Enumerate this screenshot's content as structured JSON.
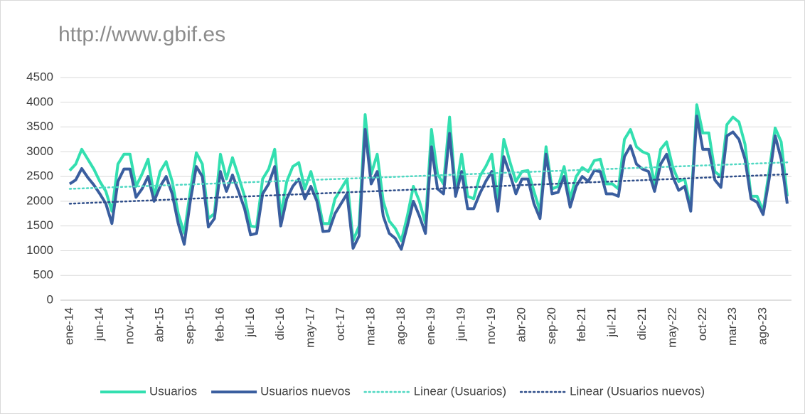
{
  "chart_data": {
    "type": "line",
    "title": "http://www.gbif.es",
    "categories": [
      "ene-14",
      null,
      null,
      null,
      null,
      "jun-14",
      null,
      null,
      null,
      null,
      "nov-14",
      null,
      null,
      null,
      null,
      "abr-15",
      null,
      null,
      null,
      null,
      "sep-15",
      null,
      null,
      null,
      null,
      "feb-16",
      null,
      null,
      null,
      null,
      "jul-16",
      null,
      null,
      null,
      null,
      "dic-16",
      null,
      null,
      null,
      null,
      "may-17",
      null,
      null,
      null,
      null,
      "oct-17",
      null,
      null,
      null,
      null,
      "mar-18",
      null,
      null,
      null,
      null,
      "ago-18",
      null,
      null,
      null,
      null,
      "ene-19",
      null,
      null,
      null,
      null,
      "jun-19",
      null,
      null,
      null,
      null,
      "nov-19",
      null,
      null,
      null,
      null,
      "abr-20",
      null,
      null,
      null,
      null,
      "sep-20",
      null,
      null,
      null,
      null,
      "feb-21",
      null,
      null,
      null,
      null,
      "jul-21",
      null,
      null,
      null,
      null,
      "dic-21",
      null,
      null,
      null,
      null,
      "may-22",
      null,
      null,
      null,
      null,
      "oct-22",
      null,
      null,
      null,
      null,
      "mar-23",
      null,
      null,
      null,
      null,
      "ago-23",
      null,
      null,
      null,
      null
    ],
    "series": [
      {
        "name": "Usuarios",
        "color": "#33dfb0",
        "line_style": "solid",
        "values": [
          2620,
          2750,
          3050,
          2850,
          2650,
          2400,
          2200,
          1800,
          2750,
          2950,
          2950,
          2300,
          2550,
          2850,
          2100,
          2600,
          2800,
          2400,
          1750,
          1350,
          2200,
          2980,
          2750,
          1650,
          1750,
          2950,
          2450,
          2880,
          2500,
          2100,
          1500,
          1480,
          2450,
          2650,
          3050,
          1700,
          2400,
          2700,
          2780,
          2250,
          2600,
          2150,
          1550,
          1550,
          2050,
          2250,
          2450,
          1200,
          1500,
          3750,
          2550,
          2950,
          2000,
          1600,
          1450,
          1200,
          1700,
          2300,
          2000,
          1550,
          3450,
          2550,
          2350,
          3700,
          2200,
          2950,
          2100,
          2050,
          2500,
          2700,
          2950,
          2000,
          3250,
          2800,
          2400,
          2600,
          2620,
          2200,
          1800,
          3100,
          2250,
          2300,
          2700,
          2050,
          2500,
          2680,
          2600,
          2820,
          2850,
          2350,
          2350,
          2250,
          3250,
          3450,
          3100,
          3000,
          2950,
          2350,
          3050,
          3200,
          2700,
          2400,
          2450,
          1850,
          3950,
          3380,
          3380,
          2600,
          2500,
          3550,
          3700,
          3600,
          3150,
          2100,
          2100,
          1800,
          2600,
          3480,
          3200,
          2100
        ]
      },
      {
        "name": "Usuarios nuevos",
        "color": "#3a5e9f",
        "line_style": "solid",
        "values": [
          2350,
          2430,
          2660,
          2480,
          2330,
          2150,
          1950,
          1550,
          2400,
          2650,
          2650,
          2080,
          2250,
          2500,
          2000,
          2300,
          2500,
          2150,
          1550,
          1130,
          2000,
          2700,
          2500,
          1480,
          1650,
          2600,
          2200,
          2530,
          2200,
          1850,
          1320,
          1350,
          2150,
          2350,
          2700,
          1500,
          2050,
          2300,
          2450,
          2050,
          2300,
          2000,
          1390,
          1400,
          1750,
          1950,
          2150,
          1050,
          1300,
          3450,
          2350,
          2600,
          1700,
          1350,
          1250,
          1030,
          1500,
          2000,
          1700,
          1350,
          3100,
          2250,
          2150,
          3370,
          2100,
          2600,
          1850,
          1850,
          2150,
          2400,
          2600,
          1800,
          2900,
          2550,
          2150,
          2450,
          2450,
          1950,
          1650,
          2950,
          2150,
          2180,
          2500,
          1880,
          2300,
          2500,
          2400,
          2620,
          2600,
          2150,
          2150,
          2100,
          2900,
          3120,
          2750,
          2650,
          2600,
          2200,
          2750,
          2950,
          2500,
          2220,
          2300,
          1800,
          3720,
          3050,
          3050,
          2430,
          2280,
          3320,
          3400,
          3250,
          2850,
          2050,
          1980,
          1730,
          2450,
          3320,
          2850,
          1950
        ]
      },
      {
        "name": "Linear (Usuarios)",
        "color": "#4fd8c2",
        "line_style": "dotted",
        "values": [
          2250,
          2254.5,
          2259,
          2263.5,
          2268,
          2272.5,
          2277,
          2281.5,
          2286,
          2290.5,
          2295,
          2299.5,
          2304,
          2308.5,
          2313,
          2317.5,
          2322,
          2326.5,
          2331,
          2335.5,
          2340,
          2344.5,
          2349,
          2353.5,
          2358,
          2362.5,
          2367,
          2371.5,
          2376,
          2380.5,
          2385,
          2389.5,
          2394,
          2398.5,
          2403,
          2407.5,
          2412,
          2416.5,
          2421,
          2425.5,
          2430,
          2434.5,
          2439,
          2443.5,
          2448,
          2452.5,
          2457,
          2461.5,
          2466,
          2470.5,
          2475,
          2479.5,
          2484,
          2488.5,
          2493,
          2497.5,
          2502,
          2506.5,
          2511,
          2515.5,
          2520,
          2524.5,
          2529,
          2533.5,
          2538,
          2542.5,
          2547,
          2551.5,
          2556,
          2560.5,
          2565,
          2569.5,
          2574,
          2578.5,
          2583,
          2587.5,
          2592,
          2596.5,
          2601,
          2605.5,
          2610,
          2614.5,
          2619,
          2623.5,
          2628,
          2632.5,
          2637,
          2641.5,
          2646,
          2650.5,
          2655,
          2659.5,
          2664,
          2668.5,
          2673,
          2677.5,
          2682,
          2686.5,
          2691,
          2695.5,
          2700,
          2704.5,
          2709,
          2713.5,
          2718,
          2722.5,
          2727,
          2731.5,
          2736,
          2740.5,
          2745,
          2749.5,
          2754,
          2758.5,
          2763,
          2767.5,
          2772,
          2776.5,
          2781,
          2785.5
        ]
      },
      {
        "name": "Linear (Usuarios nuevos)",
        "color": "#2f4e8a",
        "line_style": "dotted",
        "values": [
          1950,
          1955,
          1960,
          1965,
          1970,
          1975,
          1980,
          1985,
          1990,
          1995,
          2000,
          2005,
          2010,
          2015,
          2020,
          2025,
          2030,
          2035,
          2040,
          2045,
          2050,
          2055,
          2060,
          2065,
          2070,
          2075,
          2080,
          2085,
          2090,
          2095,
          2100,
          2105,
          2110,
          2115,
          2120,
          2125,
          2130,
          2135,
          2140,
          2145,
          2150,
          2155,
          2160,
          2165,
          2170,
          2175,
          2180,
          2185,
          2190,
          2195,
          2200,
          2205,
          2210,
          2215,
          2220,
          2225,
          2230,
          2235,
          2240,
          2245,
          2250,
          2255,
          2260,
          2265,
          2270,
          2275,
          2280,
          2285,
          2290,
          2295,
          2300,
          2305,
          2310,
          2315,
          2320,
          2325,
          2330,
          2335,
          2340,
          2345,
          2350,
          2355,
          2360,
          2365,
          2370,
          2375,
          2380,
          2385,
          2390,
          2395,
          2400,
          2405,
          2410,
          2415,
          2420,
          2425,
          2430,
          2435,
          2440,
          2445,
          2450,
          2455,
          2460,
          2465,
          2470,
          2475,
          2480,
          2485,
          2490,
          2495,
          2500,
          2505,
          2510,
          2515,
          2520,
          2525,
          2530,
          2535,
          2540,
          2545
        ]
      }
    ],
    "ylim": [
      0,
      4500
    ],
    "yticks": [
      0,
      500,
      1000,
      1500,
      2000,
      2500,
      3000,
      3500,
      4000,
      4500
    ],
    "grid": true,
    "legend": "bottom"
  }
}
